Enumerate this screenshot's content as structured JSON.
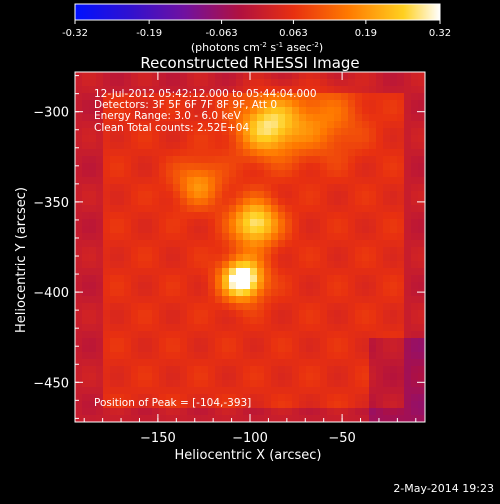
{
  "chart_data": {
    "type": "heatmap",
    "title": "Reconstructed RHESSI Image",
    "xlabel": "Heliocentric X (arcsec)",
    "ylabel": "Heliocentric Y (arcsec)",
    "xlim": [
      -195,
      -5
    ],
    "ylim": [
      -472,
      -278
    ],
    "x_ticks": [
      -150,
      -100,
      -50
    ],
    "y_ticks": [
      -300,
      -350,
      -400,
      -450
    ],
    "colorbar": {
      "colormap": "hot",
      "range": [
        -0.32,
        0.32
      ],
      "ticks": [
        -0.32,
        -0.19,
        -0.063,
        0.063,
        0.19,
        0.32
      ],
      "tick_labels": [
        "-0.32",
        "-0.19",
        "-0.063",
        "0.063",
        "0.19",
        "0.32"
      ],
      "label_parts": [
        "(photons cm",
        "-2",
        " s",
        "-1",
        " asec",
        "-2",
        ")"
      ]
    },
    "annotations": {
      "time_range": "12-Jul-2012 05:42:12.000 to 05:44:04.000",
      "detectors": "Detectors: 3F 5F 6F 7F 8F 9F, Att 0",
      "energy": "Energy Range: 3.0 - 6.0 keV",
      "clean": "Clean     Total counts: 2.52E+04",
      "peak": "Position of Peak = [-104,-393]"
    },
    "sources": [
      {
        "x": -104,
        "y": -393,
        "peak": 0.32,
        "sigma": 8
      },
      {
        "x": -97,
        "y": -362,
        "peak": 0.24,
        "sigma": 9
      },
      {
        "x": -90,
        "y": -308,
        "peak": 0.22,
        "sigma": 12
      },
      {
        "x": -128,
        "y": -340,
        "peak": 0.13,
        "sigma": 9
      },
      {
        "x": -60,
        "y": -305,
        "peak": 0.1,
        "sigma": 14
      }
    ],
    "background_level": 0.075
  },
  "footer": {
    "date": "2-May-2014 19:23"
  }
}
